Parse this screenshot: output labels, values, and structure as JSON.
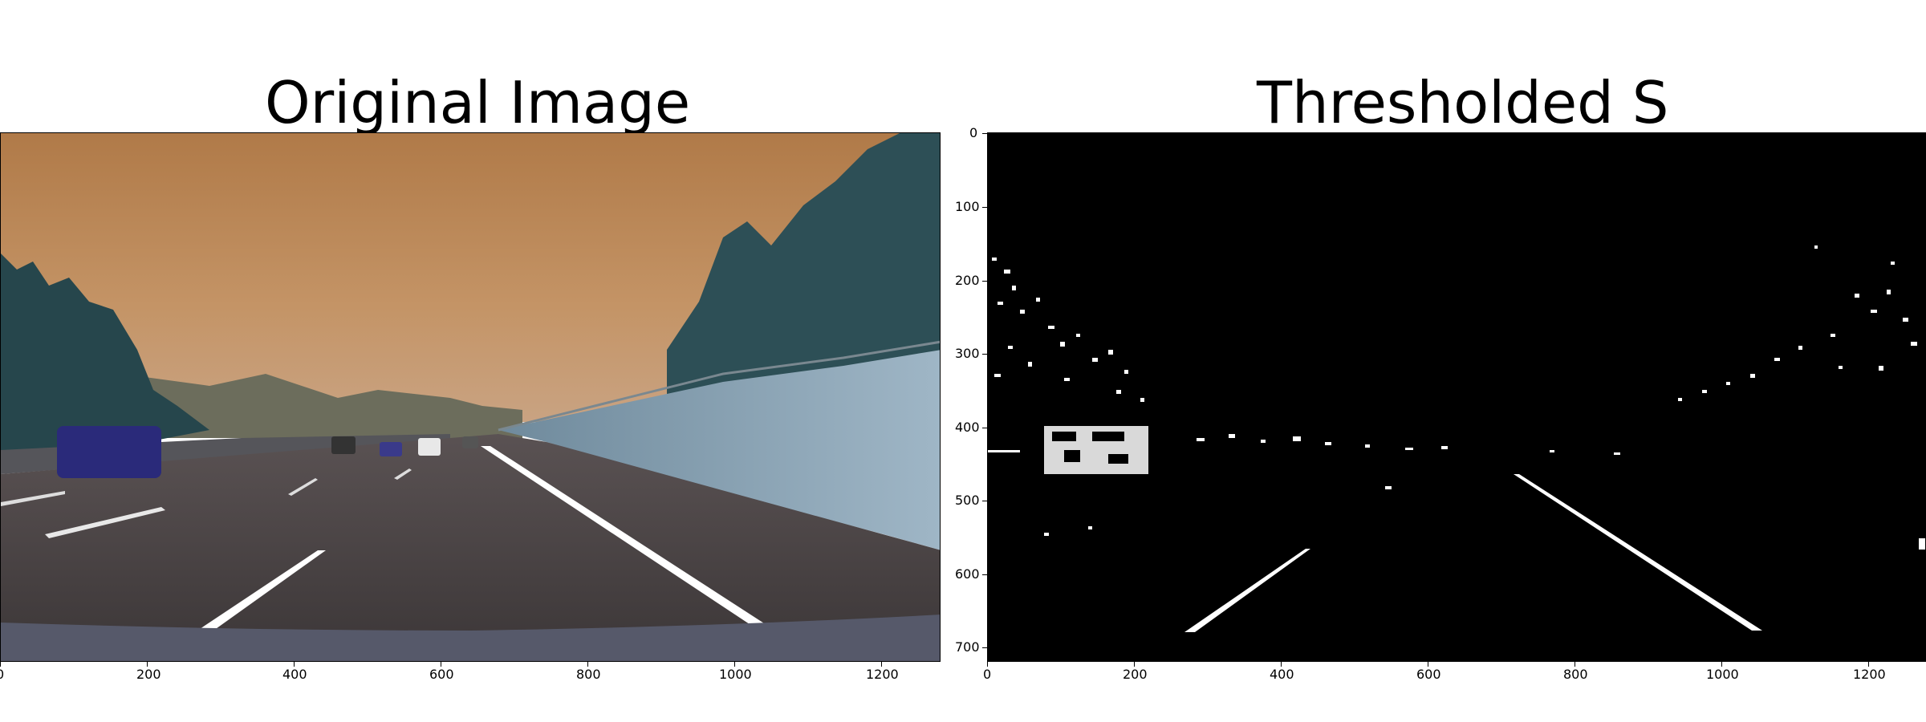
{
  "panels": {
    "left": {
      "title": "Original Image",
      "x_ticks": [
        "0",
        "200",
        "400",
        "600",
        "800",
        "1000",
        "1200"
      ]
    },
    "right": {
      "title": "Thresholded S",
      "x_ticks": [
        "0",
        "200",
        "400",
        "600",
        "800",
        "1000",
        "1200"
      ],
      "y_ticks": [
        "0",
        "100",
        "200",
        "300",
        "400",
        "500",
        "600",
        "700"
      ]
    }
  },
  "colors": {
    "sky": "#b9834e",
    "road": "#3f3a3c",
    "lane_marking": "#ffffff",
    "threshold_background": "#000000",
    "threshold_foreground": "#ffffff"
  }
}
